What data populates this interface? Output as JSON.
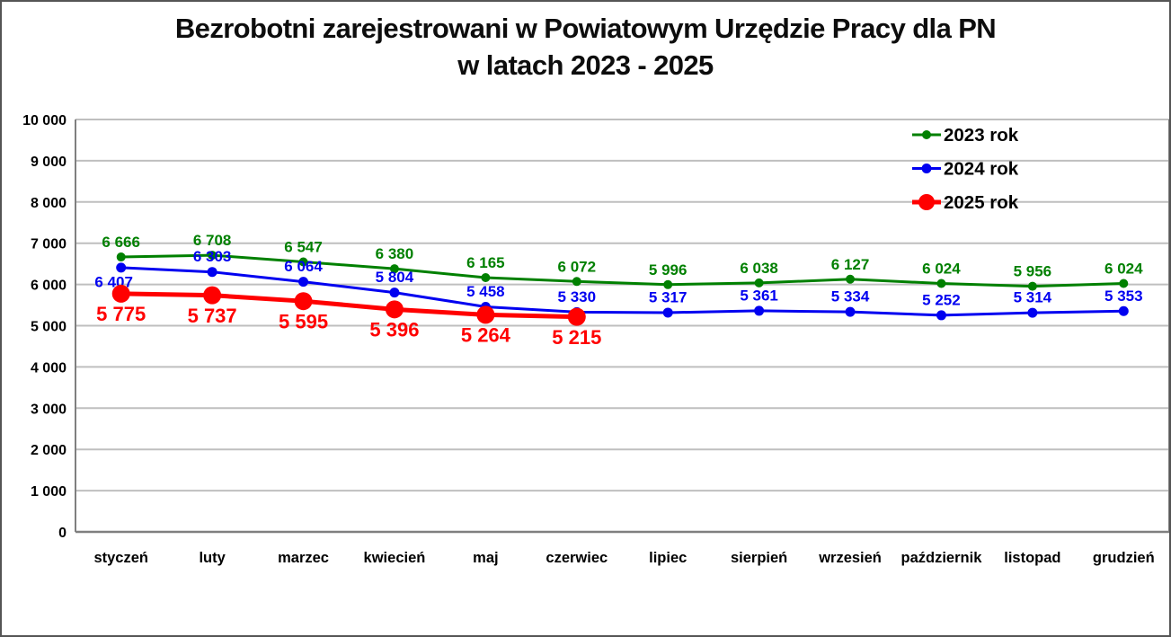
{
  "chart_data": {
    "type": "line",
    "title": "Bezrobotni zarejestrowani w Powiatowym Urzędzie Pracy dla PN w latach 2023 - 2025",
    "title_lines": [
      "Bezrobotni zarejestrowani w Powiatowym Urzędzie Pracy dla PN",
      "w latach 2023 - 2025"
    ],
    "categories": [
      "styczeń",
      "luty",
      "marzec",
      "kwiecień",
      "maj",
      "czerwiec",
      "lipiec",
      "sierpień",
      "wrzesień",
      "październik",
      "listopad",
      "grudzień"
    ],
    "series": [
      {
        "name": "2023 rok",
        "color": "#008000",
        "values": [
          6666,
          6708,
          6547,
          6380,
          6165,
          6072,
          5996,
          6038,
          6127,
          6024,
          5956,
          6024
        ],
        "labels": [
          "6 666",
          "6 708",
          "6 547",
          "6 380",
          "6 165",
          "6 072",
          "5 996",
          "6 038",
          "6 127",
          "6 024",
          "5 956",
          "6 024"
        ],
        "marker_radius": 5,
        "line_width": 3,
        "label_font_size": 17,
        "label_position": "above",
        "label_exceptions": {}
      },
      {
        "name": "2024 rok",
        "color": "#0000f0",
        "values": [
          6407,
          6303,
          6064,
          5804,
          5458,
          5330,
          5317,
          5361,
          5334,
          5252,
          5314,
          5353
        ],
        "labels": [
          "6 407",
          "6 303",
          "6 064",
          "5 804",
          "5 458",
          "5 330",
          "5 317",
          "5 361",
          "5 334",
          "5 252",
          "5 314",
          "5 353"
        ],
        "marker_radius": 5.5,
        "line_width": 3,
        "label_font_size": 17,
        "label_position": "above",
        "label_exceptions": {
          "0": "below-left"
        }
      },
      {
        "name": "2025 rok",
        "color": "#ff0000",
        "values": [
          5775,
          5737,
          5595,
          5396,
          5264,
          5215
        ],
        "labels": [
          "5 775",
          "5 737",
          "5 595",
          "5 396",
          "5 264",
          "5 215"
        ],
        "marker_radius": 10,
        "line_width": 5,
        "label_font_size": 22,
        "label_position": "below",
        "label_exceptions": {}
      }
    ],
    "y_axis": {
      "min": 0,
      "max": 10000,
      "step": 1000,
      "tick_labels": [
        "0",
        "1 000",
        "2 000",
        "3 000",
        "4 000",
        "5 000",
        "6 000",
        "7 000",
        "8 000",
        "9 000",
        "10 000"
      ]
    },
    "xlabel": "",
    "ylabel": "",
    "grid": true,
    "legend": {
      "position": "top-right",
      "entries": [
        "2023 rok",
        "2024 rok",
        "2025 rok"
      ]
    }
  },
  "styles": {
    "grid_color": "#bfbfbf",
    "axis_border_color": "#7f7f7f",
    "text_color": "#000000",
    "background": "#ffffff",
    "frame_border_color": "#555555"
  }
}
